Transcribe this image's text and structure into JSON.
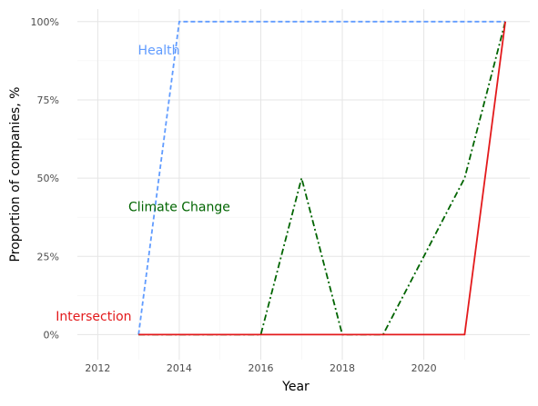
{
  "chart_data": {
    "type": "line",
    "title": "",
    "xlabel": "Year",
    "ylabel": "Proportion of companies, %",
    "xlim": [
      2011.5,
      2022.6
    ],
    "ylim": [
      -0.08,
      1.04
    ],
    "x_ticks": [
      2012,
      2014,
      2016,
      2018,
      2020
    ],
    "y_ticks": [
      0,
      0.25,
      0.5,
      0.75,
      1.0
    ],
    "y_tick_labels": [
      "0%",
      "25%",
      "50%",
      "75%",
      "100%"
    ],
    "grid": true,
    "legend": "none",
    "series": [
      {
        "name": "Health",
        "color": "#619CFF",
        "line_style": "dashed",
        "label_pos": {
          "x": 2013.5,
          "y": 0.895
        },
        "points": [
          {
            "x": 2013,
            "y": 0
          },
          {
            "x": 2014,
            "y": 1.0
          },
          {
            "x": 2022,
            "y": 1.0
          }
        ]
      },
      {
        "name": "Climate Change",
        "color": "#006400",
        "line_style": "dashdot",
        "label_pos": {
          "x": 2014.0,
          "y": 0.395
        },
        "points": [
          {
            "x": 2013,
            "y": 0
          },
          {
            "x": 2016,
            "y": 0
          },
          {
            "x": 2017,
            "y": 0.5
          },
          {
            "x": 2018,
            "y": 0
          },
          {
            "x": 2019,
            "y": 0
          },
          {
            "x": 2021,
            "y": 0.5
          },
          {
            "x": 2022,
            "y": 1.0
          }
        ]
      },
      {
        "name": "Intersection",
        "color": "#E31A1C",
        "line_style": "solid",
        "label_pos": {
          "x": 2011.9,
          "y": 0.045
        },
        "points": [
          {
            "x": 2013,
            "y": 0
          },
          {
            "x": 2021,
            "y": 0
          },
          {
            "x": 2022,
            "y": 1.0
          }
        ]
      }
    ]
  }
}
